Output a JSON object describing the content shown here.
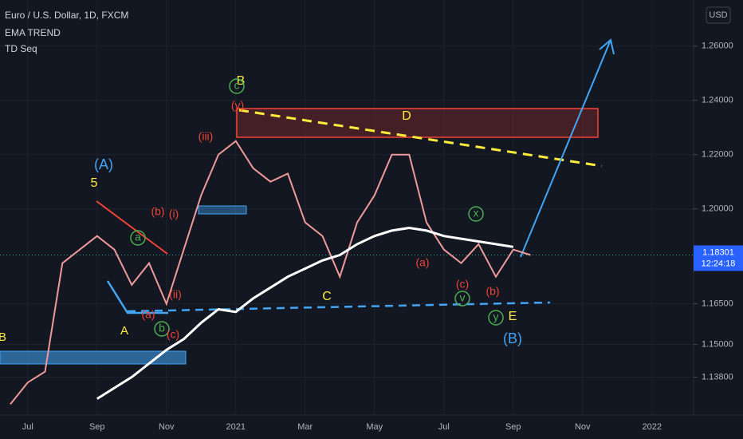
{
  "chart_data": {
    "type": "line",
    "title": "Euro / U.S. Dollar, 1D, FXCM",
    "study": "TD Seq",
    "currency": "USD",
    "categories": [
      null,
      "Jul",
      null,
      null,
      null,
      "Sep",
      null,
      null,
      null,
      "Nov",
      null,
      null,
      null,
      "2021",
      null,
      null,
      null,
      "Mar",
      null,
      null,
      null,
      "May",
      null,
      null,
      null,
      "Jul",
      null,
      null,
      null,
      "Sep",
      null,
      null,
      null,
      "Nov",
      null,
      null,
      null,
      "2022",
      null,
      null
    ],
    "series": [
      {
        "color": "#ef9a9a",
        "values": [
          1.128,
          1.136,
          1.14,
          1.18,
          1.185,
          1.19,
          1.185,
          1.172,
          1.18,
          1.165,
          1.185,
          1.205,
          1.22,
          1.225,
          1.215,
          1.21,
          1.213,
          1.195,
          1.19,
          1.175,
          1.195,
          1.205,
          1.22,
          1.22,
          1.195,
          1.185,
          1.18,
          1.187,
          1.175,
          1.185,
          1.183,
          null,
          null,
          null,
          null,
          null,
          null,
          null,
          null,
          null
        ]
      },
      {
        "name": "EMA TREND",
        "color": "#ffffff",
        "values": [
          null,
          null,
          null,
          null,
          null,
          1.13,
          1.134,
          1.138,
          1.143,
          1.148,
          1.152,
          1.158,
          1.163,
          1.162,
          1.167,
          1.171,
          1.175,
          1.178,
          1.181,
          1.183,
          1.187,
          1.19,
          1.192,
          1.193,
          1.192,
          1.19,
          1.189,
          1.188,
          1.187,
          1.186,
          null,
          null,
          null,
          null,
          null,
          null,
          null,
          null,
          null,
          null
        ]
      }
    ],
    "ylim": [
      1.124,
      1.277
    ],
    "yticks": [
      {
        "value": 1.26,
        "label": "1.26000"
      },
      {
        "value": 1.24,
        "label": "1.24000"
      },
      {
        "value": 1.22,
        "label": "1.22000"
      },
      {
        "value": 1.2,
        "label": "1.20000"
      },
      {
        "value": 1.165,
        "label": "1.16500"
      },
      {
        "value": 1.15,
        "label": "1.15000"
      },
      {
        "value": 1.138,
        "label": "1.13800"
      }
    ],
    "last_value": 1.18301,
    "countdown": "12:24:18",
    "annotations": [
      "(A)",
      "5",
      "A",
      "(a)",
      "b",
      "(c)",
      "a",
      "(b)",
      "(i)",
      "(ii)",
      "(iii)",
      "B",
      "c",
      "(y)",
      "D",
      "C",
      "(a)",
      "(c)",
      "(b)",
      "x",
      "v",
      "y",
      "E",
      "(B)",
      "B"
    ],
    "grid": true
  }
}
